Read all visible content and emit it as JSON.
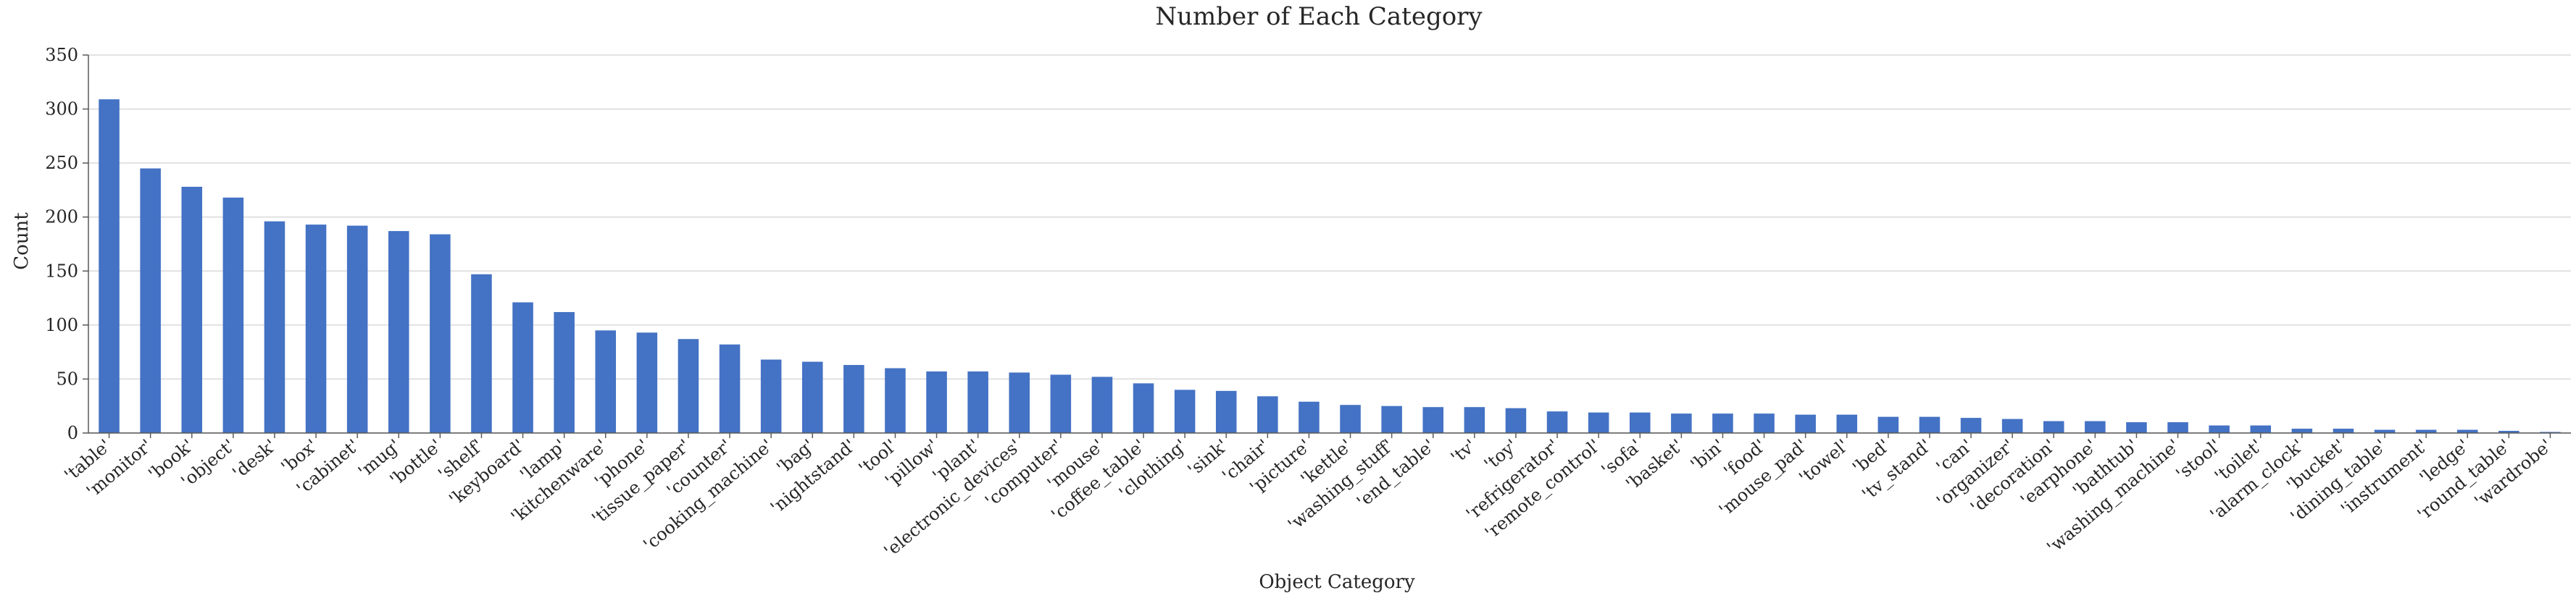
{
  "chart_data": {
    "type": "bar",
    "title": "Number of Each Category",
    "xlabel": "Object Category",
    "ylabel": "Count",
    "ylim": [
      0,
      350
    ],
    "yticks": [
      0,
      50,
      100,
      150,
      200,
      250,
      300,
      350
    ],
    "grid": "horizontal",
    "bar_color": "#4472C4",
    "categories": [
      "'table'",
      "'monitor'",
      "'book'",
      "'object'",
      "'desk'",
      "'box'",
      "'cabinet'",
      "'mug'",
      "'bottle'",
      "'shelf'",
      "'keyboard'",
      "'lamp'",
      "'kitchenware'",
      "'phone'",
      "'tissue_paper'",
      "'counter'",
      "'cooking_machine'",
      "'bag'",
      "'nightstand'",
      "'tool'",
      "'pillow'",
      "'plant'",
      "'electronic_devices'",
      "'computer'",
      "'mouse'",
      "'coffee_table'",
      "'clothing'",
      "'sink'",
      "'chair'",
      "'picture'",
      "'kettle'",
      "'washing_stuff'",
      "'end_table'",
      "'tv'",
      "'toy'",
      "'refrigerator'",
      "'remote_control'",
      "'sofa'",
      "'basket'",
      "'bin'",
      "'food'",
      "'mouse_pad'",
      "'towel'",
      "'bed'",
      "'tv_stand'",
      "'can'",
      "'organizer'",
      "'decoration'",
      "'earphone'",
      "'bathtub'",
      "'washing_machine'",
      "'stool'",
      "'toilet'",
      "'alarm_clock'",
      "'bucket'",
      "'dining_table'",
      "'instrument'",
      "'ledge'",
      "'round_table'",
      "'wardrobe'"
    ],
    "values": [
      309,
      245,
      228,
      218,
      196,
      193,
      192,
      187,
      184,
      147,
      121,
      112,
      95,
      93,
      87,
      82,
      68,
      66,
      63,
      60,
      57,
      57,
      56,
      54,
      52,
      46,
      40,
      39,
      34,
      29,
      26,
      25,
      24,
      24,
      23,
      20,
      19,
      19,
      18,
      18,
      18,
      17,
      17,
      15,
      15,
      14,
      13,
      11,
      11,
      10,
      10,
      7,
      7,
      4,
      4,
      3,
      3,
      3,
      2,
      1
    ]
  }
}
